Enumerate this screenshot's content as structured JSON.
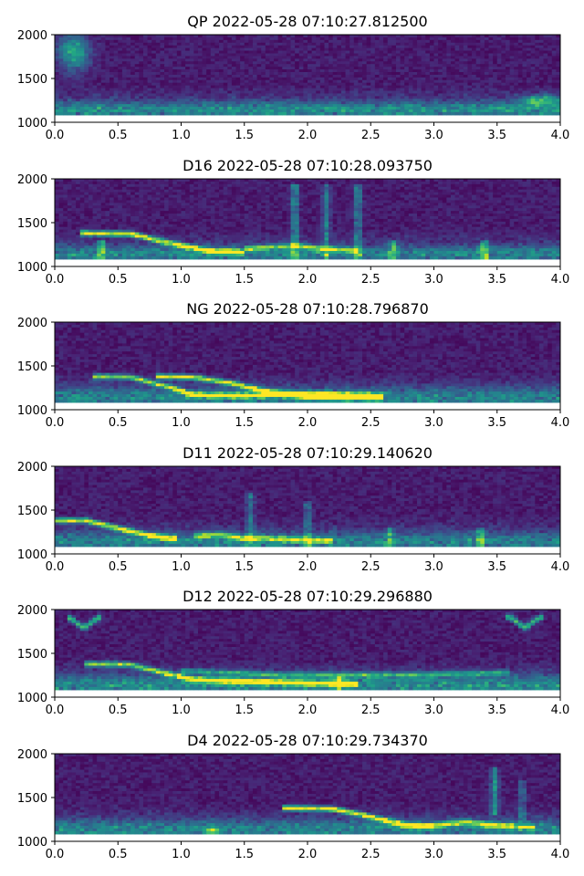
{
  "chart_data": [
    {
      "type": "heatmap",
      "title": "QP 2022-05-28 07:10:27.812500",
      "xlim": [
        0.0,
        4.0
      ],
      "ylim": [
        1000,
        2000
      ],
      "xticks": [
        "0.0",
        "0.5",
        "1.0",
        "1.5",
        "2.0",
        "2.5",
        "3.0",
        "3.5",
        "4.0"
      ],
      "yticks": [
        "1000",
        "1500",
        "2000"
      ],
      "xlabel": "",
      "ylabel": "",
      "colormap": "viridis",
      "features": [
        {
          "kind": "band",
          "t0": 0.0,
          "t1": 4.0,
          "f": 1150,
          "width": 80,
          "intensity": 0.35
        },
        {
          "kind": "blob",
          "t": 0.15,
          "f": 1800,
          "dt": 0.12,
          "df": 200,
          "intensity": 0.6
        },
        {
          "kind": "blob",
          "t": 3.85,
          "f": 1250,
          "dt": 0.15,
          "df": 60,
          "intensity": 0.55
        }
      ]
    },
    {
      "type": "heatmap",
      "title": "D16 2022-05-28 07:10:28.093750",
      "xlim": [
        0.0,
        4.0
      ],
      "ylim": [
        1000,
        2000
      ],
      "xticks": [
        "0.0",
        "0.5",
        "1.0",
        "1.5",
        "2.0",
        "2.5",
        "3.0",
        "3.5",
        "4.0"
      ],
      "yticks": [
        "1000",
        "1500",
        "2000"
      ],
      "xlabel": "",
      "ylabel": "",
      "colormap": "viridis",
      "features": [
        {
          "kind": "band",
          "t0": 0.0,
          "t1": 4.0,
          "f": 1150,
          "width": 80,
          "intensity": 0.3
        },
        {
          "kind": "chirp",
          "points": [
            [
              0.2,
              1380
            ],
            [
              0.6,
              1370
            ],
            [
              0.9,
              1270
            ],
            [
              1.2,
              1180
            ],
            [
              1.5,
              1160
            ]
          ],
          "intensity": 0.95
        },
        {
          "kind": "chirp",
          "points": [
            [
              1.5,
              1200
            ],
            [
              1.9,
              1240
            ],
            [
              2.1,
              1200
            ],
            [
              2.4,
              1180
            ]
          ],
          "intensity": 0.6
        },
        {
          "kind": "spike",
          "t": 0.37,
          "f0": 1000,
          "f1": 1300,
          "intensity": 0.5
        },
        {
          "kind": "spike",
          "t": 1.9,
          "f0": 1000,
          "f1": 1950,
          "intensity": 0.45
        },
        {
          "kind": "spike",
          "t": 2.15,
          "f0": 1000,
          "f1": 1950,
          "intensity": 0.35
        },
        {
          "kind": "spike",
          "t": 2.4,
          "f0": 1000,
          "f1": 1950,
          "intensity": 0.4
        },
        {
          "kind": "spike",
          "t": 2.68,
          "f0": 1000,
          "f1": 1300,
          "intensity": 0.5
        },
        {
          "kind": "spike",
          "t": 3.4,
          "f0": 1000,
          "f1": 1300,
          "intensity": 0.5
        }
      ]
    },
    {
      "type": "heatmap",
      "title": "NG 2022-05-28 07:10:28.796870",
      "xlim": [
        0.0,
        4.0
      ],
      "ylim": [
        1000,
        2000
      ],
      "xticks": [
        "0.0",
        "0.5",
        "1.0",
        "1.5",
        "2.0",
        "2.5",
        "3.0",
        "3.5",
        "4.0"
      ],
      "yticks": [
        "1000",
        "1500",
        "2000"
      ],
      "xlabel": "",
      "ylabel": "",
      "colormap": "viridis",
      "features": [
        {
          "kind": "band",
          "t0": 0.0,
          "t1": 4.0,
          "f": 1150,
          "width": 100,
          "intensity": 0.3
        },
        {
          "kind": "chirp",
          "points": [
            [
              0.3,
              1380
            ],
            [
              0.6,
              1370
            ],
            [
              0.9,
              1260
            ],
            [
              1.1,
              1170
            ],
            [
              1.5,
              1160
            ],
            [
              2.0,
              1180
            ],
            [
              2.6,
              1160
            ]
          ],
          "intensity": 0.75
        },
        {
          "kind": "chirp",
          "points": [
            [
              0.8,
              1380
            ],
            [
              1.1,
              1370
            ],
            [
              1.4,
              1300
            ],
            [
              1.7,
              1200
            ],
            [
              2.0,
              1150
            ],
            [
              2.6,
              1130
            ]
          ],
          "intensity": 0.9
        }
      ]
    },
    {
      "type": "heatmap",
      "title": "D11 2022-05-28 07:10:29.140620",
      "xlim": [
        0.0,
        4.0
      ],
      "ylim": [
        1000,
        2000
      ],
      "xticks": [
        "0.0",
        "0.5",
        "1.0",
        "1.5",
        "2.0",
        "2.5",
        "3.0",
        "3.5",
        "4.0"
      ],
      "yticks": [
        "1000",
        "1500",
        "2000"
      ],
      "xlabel": "",
      "ylabel": "",
      "colormap": "viridis",
      "features": [
        {
          "kind": "band",
          "t0": 0.0,
          "t1": 4.0,
          "f": 1150,
          "width": 90,
          "intensity": 0.3
        },
        {
          "kind": "chirp",
          "points": [
            [
              0.0,
              1380
            ],
            [
              0.25,
              1380
            ],
            [
              0.5,
              1290
            ],
            [
              0.75,
              1210
            ],
            [
              0.95,
              1170
            ]
          ],
          "intensity": 0.95
        },
        {
          "kind": "chirp",
          "points": [
            [
              1.1,
              1200
            ],
            [
              1.3,
              1220
            ],
            [
              1.5,
              1180
            ],
            [
              1.8,
              1170
            ],
            [
              2.2,
              1150
            ]
          ],
          "intensity": 0.6
        },
        {
          "kind": "spike",
          "t": 1.55,
          "f0": 1000,
          "f1": 1700,
          "intensity": 0.35
        },
        {
          "kind": "spike",
          "t": 2.0,
          "f0": 1000,
          "f1": 1600,
          "intensity": 0.3
        },
        {
          "kind": "spike",
          "t": 2.65,
          "f0": 1000,
          "f1": 1300,
          "intensity": 0.4
        },
        {
          "kind": "spike",
          "t": 3.37,
          "f0": 1000,
          "f1": 1300,
          "intensity": 0.45
        }
      ]
    },
    {
      "type": "heatmap",
      "title": "D12 2022-05-28 07:10:29.296880",
      "xlim": [
        0.0,
        4.0
      ],
      "ylim": [
        1000,
        2000
      ],
      "xticks": [
        "0.0",
        "0.5",
        "1.0",
        "1.5",
        "2.0",
        "2.5",
        "3.0",
        "3.5",
        "4.0"
      ],
      "yticks": [
        "1000",
        "1500",
        "2000"
      ],
      "xlabel": "",
      "ylabel": "",
      "colormap": "viridis",
      "features": [
        {
          "kind": "band",
          "t0": 0.0,
          "t1": 4.0,
          "f": 1150,
          "width": 100,
          "intensity": 0.35
        },
        {
          "kind": "chirp",
          "points": [
            [
              0.25,
              1380
            ],
            [
              0.6,
              1370
            ],
            [
              0.85,
              1280
            ],
            [
              1.1,
              1200
            ],
            [
              1.5,
              1180
            ],
            [
              2.0,
              1160
            ],
            [
              2.4,
              1150
            ]
          ],
          "intensity": 0.8
        },
        {
          "kind": "chirp",
          "points": [
            [
              1.0,
              1300
            ],
            [
              1.4,
              1280
            ],
            [
              1.8,
              1250
            ],
            [
              2.4,
              1250
            ],
            [
              3.0,
              1260
            ],
            [
              3.6,
              1280
            ]
          ],
          "intensity": 0.45
        },
        {
          "kind": "arc",
          "t": 0.23,
          "f": 1820,
          "intensity": 0.6
        },
        {
          "kind": "arc",
          "t": 3.72,
          "f": 1820,
          "intensity": 0.6
        },
        {
          "kind": "spike",
          "t": 2.25,
          "f0": 1000,
          "f1": 1250,
          "intensity": 0.5
        }
      ]
    },
    {
      "type": "heatmap",
      "title": "D4 2022-05-28 07:10:29.734370",
      "xlim": [
        0.0,
        4.0
      ],
      "ylim": [
        1000,
        2000
      ],
      "xticks": [
        "0.0",
        "0.5",
        "1.0",
        "1.5",
        "2.0",
        "2.5",
        "3.0",
        "3.5",
        "4.0"
      ],
      "yticks": [
        "1000",
        "1500",
        "2000"
      ],
      "xlabel": "",
      "ylabel": "",
      "colormap": "viridis",
      "features": [
        {
          "kind": "band",
          "t0": 0.0,
          "t1": 4.0,
          "f": 1150,
          "width": 90,
          "intensity": 0.3
        },
        {
          "kind": "chirp",
          "points": [
            [
              1.8,
              1380
            ],
            [
              2.2,
              1370
            ],
            [
              2.5,
              1280
            ],
            [
              2.75,
              1190
            ],
            [
              3.0,
              1170
            ]
          ],
          "intensity": 0.95
        },
        {
          "kind": "chirp",
          "points": [
            [
              3.0,
              1180
            ],
            [
              3.25,
              1220
            ],
            [
              3.5,
              1180
            ],
            [
              3.8,
              1160
            ]
          ],
          "intensity": 0.65
        },
        {
          "kind": "spike",
          "t": 3.48,
          "f0": 1300,
          "f1": 1850,
          "intensity": 0.5
        },
        {
          "kind": "spike",
          "t": 3.7,
          "f0": 1200,
          "f1": 1700,
          "intensity": 0.3
        },
        {
          "kind": "blob",
          "t": 1.25,
          "f": 1130,
          "dt": 0.08,
          "df": 40,
          "intensity": 0.45
        }
      ]
    }
  ]
}
